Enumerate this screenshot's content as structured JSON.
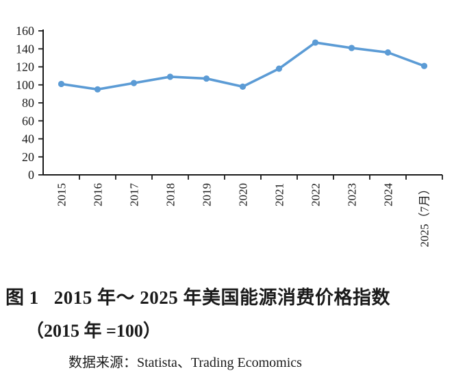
{
  "figure": {
    "caption": {
      "label": "图 1",
      "title": "2015 年～ 2025 年美国能源消费价格指数",
      "subtitle": "（2015 年 =100）",
      "source_label": "数据来源：",
      "source": "Statista、Trading Ecomomics"
    }
  },
  "chart_data": {
    "type": "line",
    "title": "2015 年～ 2025 年美国能源消费价格指数（2015 年 =100）",
    "categories": [
      "2015",
      "2016",
      "2017",
      "2018",
      "2019",
      "2020",
      "2021",
      "2022",
      "2023",
      "2024",
      "2025（7月）"
    ],
    "values": [
      101,
      95,
      102,
      109,
      107,
      98,
      118,
      147,
      141,
      136,
      121
    ],
    "xlabel": "",
    "ylabel": "",
    "ylim": [
      0,
      160
    ],
    "y_ticks": [
      0,
      20,
      40,
      60,
      80,
      100,
      120,
      140,
      160
    ],
    "grid": false,
    "legend": "none",
    "line_color": "#5B9BD5",
    "axis_color": "#1a1a1a",
    "marker": "circle",
    "source": "Statista、Trading Ecomomics"
  }
}
